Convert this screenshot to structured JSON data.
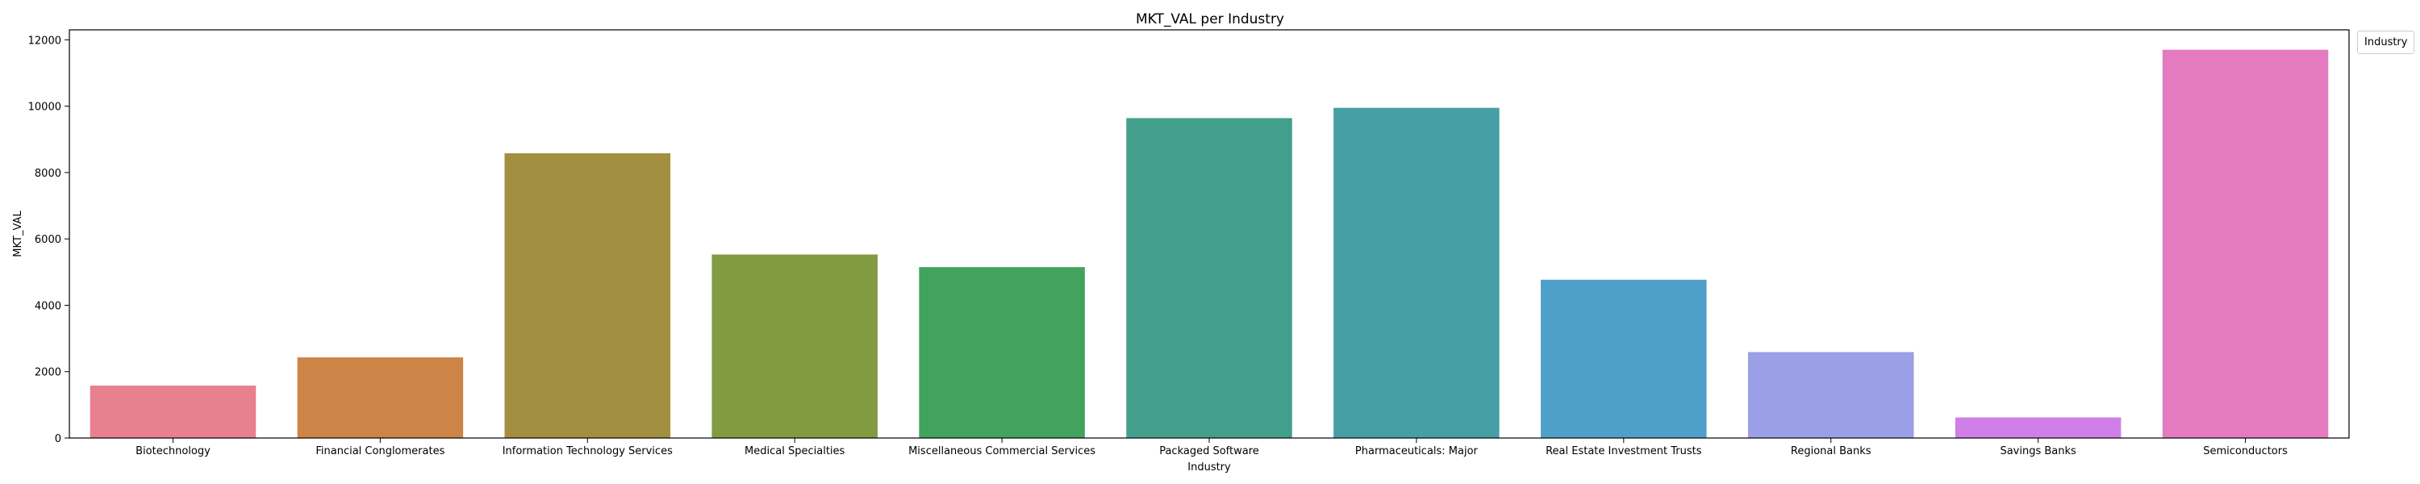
{
  "chart_data": {
    "type": "bar",
    "title": "MKT_VAL per Industry",
    "xlabel": "Industry",
    "ylabel": "MKT_VAL",
    "ylim": [
      0,
      12300
    ],
    "yticks": [
      0,
      2000,
      4000,
      6000,
      8000,
      10000,
      12000
    ],
    "legend": {
      "title": "Industry",
      "placement": "outside-top-right"
    },
    "grid": false,
    "categories": [
      "Biotechnology",
      "Financial Conglomerates",
      "Information Technology Services",
      "Medical Specialties",
      "Miscellaneous Commercial Services",
      "Packaged Software",
      "Pharmaceuticals: Major",
      "Real Estate Investment Trusts",
      "Regional Banks",
      "Savings Banks",
      "Semiconductors"
    ],
    "values": [
      1580,
      2430,
      8580,
      5530,
      5150,
      9640,
      9950,
      4770,
      2590,
      620,
      11700
    ],
    "colors": [
      "#e8808f",
      "#cc8547",
      "#a48e40",
      "#829a42",
      "#42a35e",
      "#439f8b",
      "#469fa5",
      "#4ea0c9",
      "#9b9fe6",
      "#cf7fe7",
      "#e47bc0"
    ]
  }
}
